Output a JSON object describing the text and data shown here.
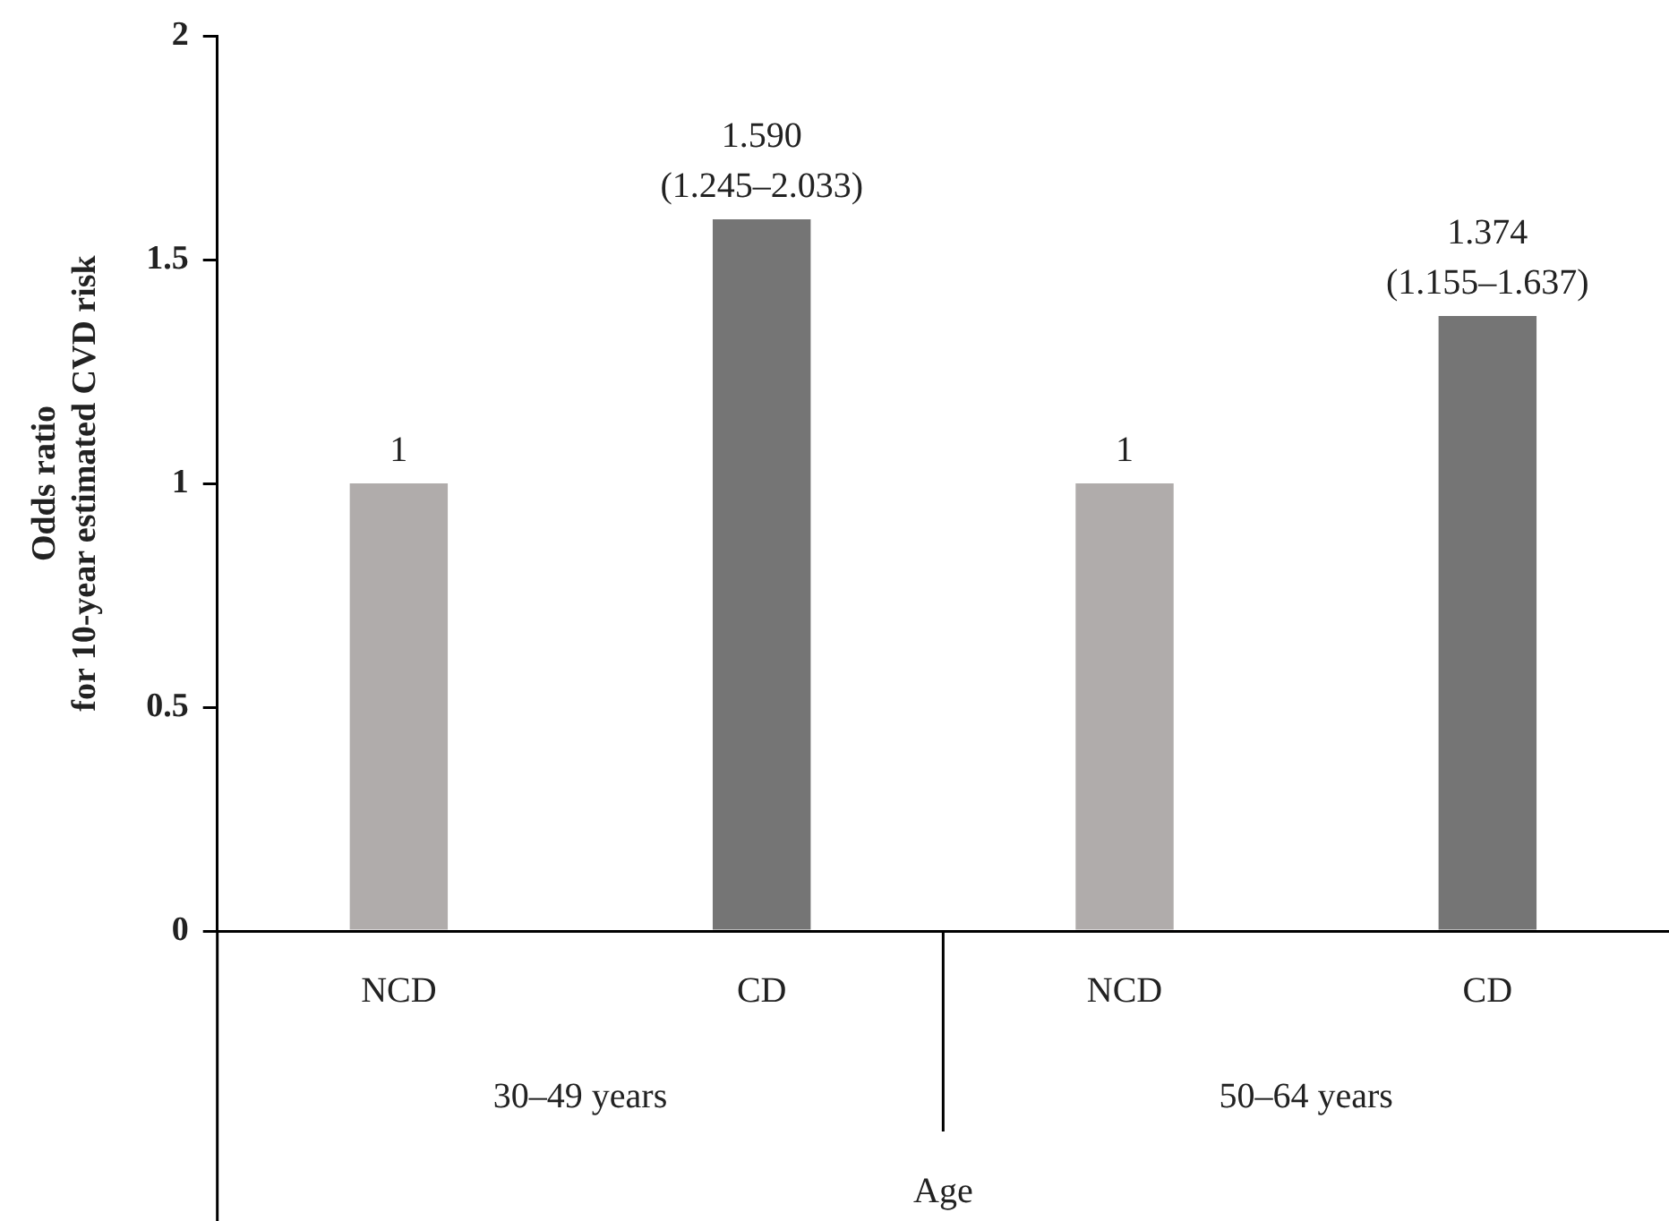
{
  "chart_data": {
    "type": "bar",
    "xlabel": "Age",
    "ylabel": "Odds ratio\nfor 10-year estimated CVD risk",
    "categories": [
      "NCD",
      "CD",
      "NCD",
      "CD"
    ],
    "values": [
      1,
      1.59,
      1,
      1.374
    ],
    "colors": [
      "#b0acab",
      "#757575",
      "#b0acab",
      "#757575"
    ],
    "value_labels": [
      "1",
      "1.590\n(1.245–2.033)",
      "1",
      "1.374\n(1.155–1.637)"
    ],
    "annotations": [
      "30–49 years",
      "50–64 years"
    ],
    "ylim": [
      0,
      2
    ],
    "yticks": [
      0,
      0.5,
      1,
      1.5,
      2
    ],
    "grid": false,
    "legend": false
  }
}
